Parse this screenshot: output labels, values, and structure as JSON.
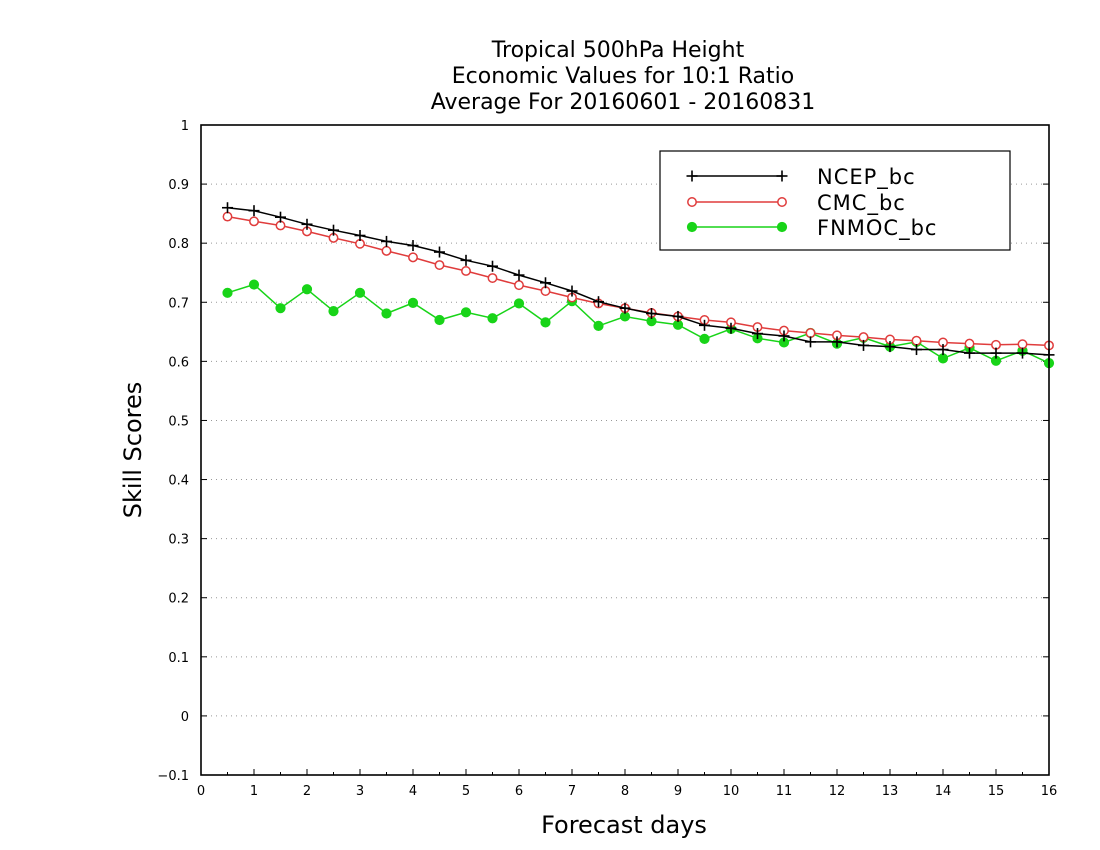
{
  "chart_data": {
    "type": "line",
    "title": [
      "Tropical 500hPa Height",
      "Economic Values for 10:1 Ratio",
      "Average For 20160601 - 20160831"
    ],
    "xlabel": "Forecast days",
    "ylabel": "Skill Scores",
    "xlim": [
      0,
      16
    ],
    "ylim": [
      -0.1,
      1
    ],
    "xticks": [
      "0",
      "1",
      "2",
      "3",
      "4",
      "5",
      "6",
      "7",
      "8",
      "9",
      "10",
      "11",
      "12",
      "13",
      "14",
      "15",
      "16"
    ],
    "yticks": [
      "−0.1",
      "0",
      "0.1",
      "0.2",
      "0.3",
      "0.4",
      "0.5",
      "0.6",
      "0.7",
      "0.8",
      "0.9",
      "1"
    ],
    "grid": "dotted-horizontal",
    "legend_position": "top-right",
    "x": [
      0.5,
      1,
      1.5,
      2,
      2.5,
      3,
      3.5,
      4,
      4.5,
      5,
      5.5,
      6,
      6.5,
      7,
      7.5,
      8,
      8.5,
      9,
      9.5,
      10,
      10.5,
      11,
      11.5,
      12,
      12.5,
      13,
      13.5,
      14,
      14.5,
      15,
      15.5,
      16
    ],
    "series": [
      {
        "name": "NCEP_bc",
        "color": "#000000",
        "marker": "plus",
        "values": [
          0.86,
          0.855,
          0.844,
          0.832,
          0.822,
          0.813,
          0.803,
          0.796,
          0.785,
          0.771,
          0.761,
          0.746,
          0.733,
          0.719,
          0.701,
          0.69,
          0.681,
          0.676,
          0.661,
          0.656,
          0.647,
          0.643,
          0.633,
          0.633,
          0.627,
          0.625,
          0.62,
          0.62,
          0.614,
          0.614,
          0.614,
          0.611
        ]
      },
      {
        "name": "CMC_bc",
        "color": "#e03c3c",
        "marker": "open-circle",
        "values": [
          0.845,
          0.837,
          0.83,
          0.82,
          0.809,
          0.799,
          0.787,
          0.776,
          0.763,
          0.753,
          0.741,
          0.729,
          0.719,
          0.708,
          0.698,
          0.69,
          0.682,
          0.676,
          0.67,
          0.666,
          0.658,
          0.652,
          0.648,
          0.644,
          0.641,
          0.637,
          0.635,
          0.632,
          0.63,
          0.628,
          0.629,
          0.627
        ]
      },
      {
        "name": "FNMOC_bc",
        "color": "#18d418",
        "marker": "filled-circle",
        "values": [
          0.716,
          0.73,
          0.69,
          0.722,
          0.685,
          0.716,
          0.681,
          0.699,
          0.67,
          0.683,
          0.673,
          0.698,
          0.666,
          0.702,
          0.66,
          0.676,
          0.668,
          0.662,
          0.638,
          0.655,
          0.639,
          0.632,
          0.648,
          0.63,
          0.64,
          0.625,
          0.633,
          0.605,
          0.623,
          0.601,
          0.618,
          0.597
        ]
      }
    ]
  }
}
